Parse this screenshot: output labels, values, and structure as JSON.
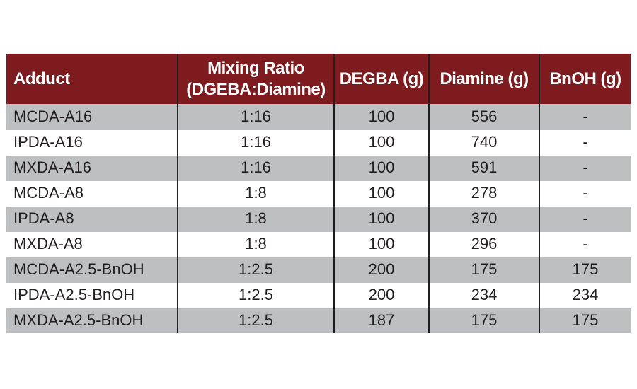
{
  "table": {
    "headers": {
      "adduct": "Adduct",
      "mixing_ratio_line1": "Mixing Ratio",
      "mixing_ratio_line2": "(DGEBA:Diamine)",
      "degba": "DEGBA (g)",
      "diamine": "Diamine (g)",
      "bnoh": "BnOH (g)"
    },
    "rows": [
      {
        "adduct": "MCDA-A16",
        "ratio": "1:16",
        "degba": "100",
        "diamine": "556",
        "bnoh": "-"
      },
      {
        "adduct": "IPDA-A16",
        "ratio": "1:16",
        "degba": "100",
        "diamine": "740",
        "bnoh": "-"
      },
      {
        "adduct": "MXDA-A16",
        "ratio": "1:16",
        "degba": "100",
        "diamine": "591",
        "bnoh": "-"
      },
      {
        "adduct": "MCDA-A8",
        "ratio": "1:8",
        "degba": "100",
        "diamine": "278",
        "bnoh": "-"
      },
      {
        "adduct": "IPDA-A8",
        "ratio": "1:8",
        "degba": "100",
        "diamine": "370",
        "bnoh": "-"
      },
      {
        "adduct": "MXDA-A8",
        "ratio": "1:8",
        "degba": "100",
        "diamine": "296",
        "bnoh": "-"
      },
      {
        "adduct": "MCDA-A2.5-BnOH",
        "ratio": "1:2.5",
        "degba": "200",
        "diamine": "175",
        "bnoh": "175"
      },
      {
        "adduct": "IPDA-A2.5-BnOH",
        "ratio": "1:2.5",
        "degba": "200",
        "diamine": "234",
        "bnoh": "234"
      },
      {
        "adduct": "MXDA-A2.5-BnOH",
        "ratio": "1:2.5",
        "degba": "187",
        "diamine": "175",
        "bnoh": "175"
      }
    ]
  },
  "colors": {
    "header_background": "#7e1b1f",
    "header_text": "#ffffff",
    "shaded_row": "#bdbfc1",
    "plain_row": "#ffffff",
    "column_divider": "#1f1f1f"
  }
}
